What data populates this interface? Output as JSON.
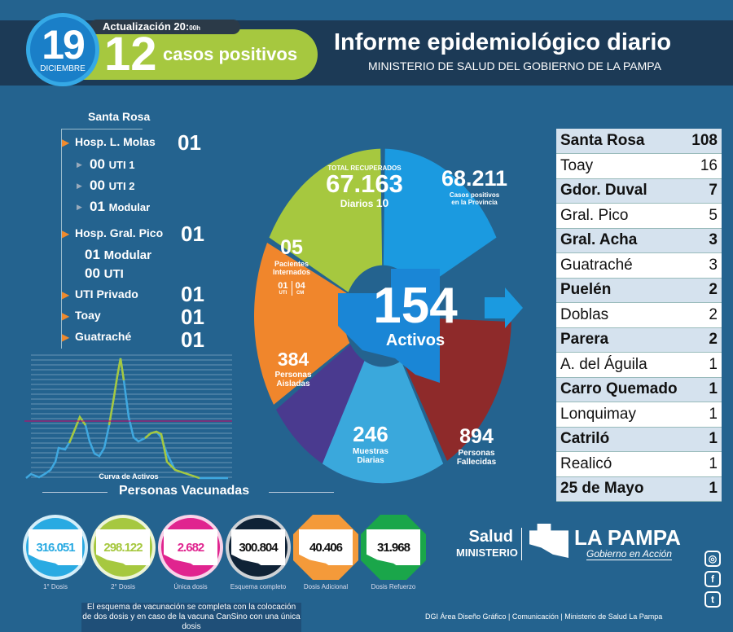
{
  "header": {
    "day": "19",
    "month": "DICIEMBRE",
    "update_label": "Actualización 20:",
    "update_suffix": "00h",
    "cases_count": "12",
    "cases_label": "casos positivos",
    "title": "Informe epidemiológico diario",
    "subtitle": "MINISTERIO DE SALUD DEL GOBIERNO DE LA PAMPA"
  },
  "hospital": {
    "city": "Santa Rosa",
    "molas": {
      "label": "Hosp. L. Molas",
      "value": "01",
      "uti1": "00",
      "uti1_label": "UTI 1",
      "uti2": "00",
      "uti2_label": "UTI 2",
      "modular": "01",
      "modular_label": "Modular"
    },
    "pico": {
      "label": "Hosp. Gral. Pico",
      "value": "01",
      "modular": "01",
      "modular_label": "Modular",
      "uti": "00",
      "uti_label": "UTI"
    },
    "uti_privado": {
      "label": "UTI Privado",
      "value": "01"
    },
    "toay": {
      "label": "Toay",
      "value": "01"
    },
    "guatrache": {
      "label": "Guatraché",
      "value": "01"
    }
  },
  "chart": {
    "label": "Curva de Activos"
  },
  "stats": {
    "recovered": {
      "label": "TOTAL RECUPERADOS",
      "value": "67.163",
      "daily_label": "Diarios",
      "daily": "10",
      "color": "#a6c83f"
    },
    "positives": {
      "value": "68.211",
      "label1": "Casos positivos",
      "label2": "en la Provincia",
      "color": "#1b9ae0"
    },
    "hospitalized": {
      "value": "05",
      "label1": "Pacientes",
      "label2": "Internados",
      "uti": "01",
      "uti_label": "UTI",
      "cm": "04",
      "cm_label": "CM",
      "color": "#f0862c"
    },
    "isolated": {
      "value": "384",
      "label1": "Personas",
      "label2": "Aisladas",
      "color": "#4a3a8f"
    },
    "samples": {
      "value": "246",
      "label1": "Muestras",
      "label2": "Diarias",
      "color": "#3aa8dc"
    },
    "deaths": {
      "value": "894",
      "label1": "Personas",
      "label2": "Fallecidas",
      "color": "#8e2a2a"
    },
    "active": {
      "value": "154",
      "label": "Activos"
    }
  },
  "localities": [
    {
      "name": "Santa Rosa",
      "value": "108",
      "bold": true
    },
    {
      "name": "Toay",
      "value": "16",
      "bold": false
    },
    {
      "name": "Gdor. Duval",
      "value": "7",
      "bold": true
    },
    {
      "name": "Gral. Pico",
      "value": "5",
      "bold": false
    },
    {
      "name": "Gral. Acha",
      "value": "3",
      "bold": true
    },
    {
      "name": "Guatraché",
      "value": "3",
      "bold": false
    },
    {
      "name": "Puelén",
      "value": "2",
      "bold": true
    },
    {
      "name": "Doblas",
      "value": "2",
      "bold": false
    },
    {
      "name": "Parera",
      "value": "2",
      "bold": true
    },
    {
      "name": "A. del Águila",
      "value": "1",
      "bold": false
    },
    {
      "name": "Carro Quemado",
      "value": "1",
      "bold": true
    },
    {
      "name": "Lonquimay",
      "value": "1",
      "bold": false
    },
    {
      "name": "Catriló",
      "value": "1",
      "bold": true
    },
    {
      "name": "Realicó",
      "value": "1",
      "bold": false
    },
    {
      "name": "25 de Mayo",
      "value": "1",
      "bold": true
    }
  ],
  "vaccines": {
    "title": "Personas Vacunadas",
    "items": [
      {
        "value": "316.051",
        "label": "1° Dosis",
        "color": "#29aae2"
      },
      {
        "value": "298.122",
        "label": "2° Dosis",
        "color": "#a6c83f"
      },
      {
        "value": "2.682",
        "label": "Única dosis",
        "color": "#e0248f"
      },
      {
        "value": "300.804",
        "label": "Esquema completo",
        "color": "#0f2236"
      },
      {
        "value": "40.406",
        "label": "Dosis Adicional",
        "color": "#f49a3a"
      },
      {
        "value": "31.968",
        "label": "Dosis Refuerzo",
        "color": "#1aa64a"
      }
    ],
    "note": "El esquema de vacunación se completa con la colocación de dos dosis y en caso de la vacuna CanSino con una única dosis"
  },
  "logo": {
    "salud": "Salud",
    "ministerio": "MINISTERIO",
    "province": "LA PAMPA",
    "tagline": "Gobierno en Acción"
  },
  "footer": {
    "credit": "DGI Área Diseño Gráfico  | Comunicación  | Ministerio de Salud La Pampa"
  }
}
